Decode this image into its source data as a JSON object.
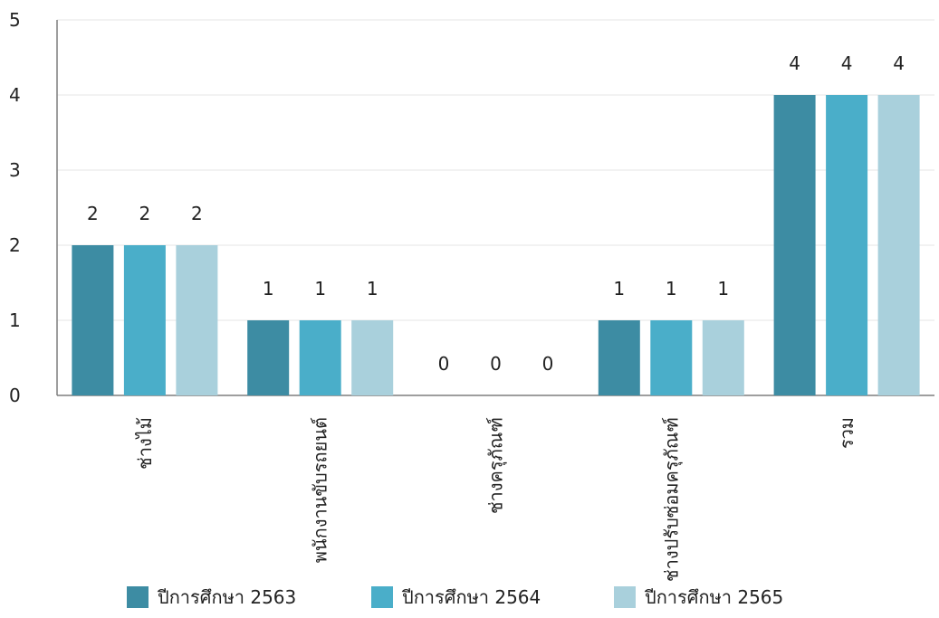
{
  "chart_data": {
    "type": "bar",
    "title": "",
    "xlabel": "",
    "ylabel": "",
    "ylim": [
      0,
      5
    ],
    "yticks": [
      "0",
      "1",
      "2",
      "3",
      "4",
      "5"
    ],
    "grid": true,
    "legend_position": "bottom",
    "categories": [
      "ช่างไม้",
      "พนักงานขับรถยนต์",
      "ช่างครุภัณฑ์",
      "ช่างปรับซ่อมครุภัณฑ์",
      "รวม"
    ],
    "series": [
      {
        "name": "ปีการศึกษา 2563",
        "color": "#3d8ca3",
        "values": [
          2,
          1,
          0,
          1,
          4
        ]
      },
      {
        "name": "ปีการศึกษา 2564",
        "color": "#4aaec9",
        "values": [
          2,
          1,
          0,
          1,
          4
        ]
      },
      {
        "name": "ปีการศึกษา 2565",
        "color": "#a9d0dc",
        "values": [
          2,
          1,
          0,
          1,
          4
        ]
      }
    ],
    "data_labels": true
  }
}
